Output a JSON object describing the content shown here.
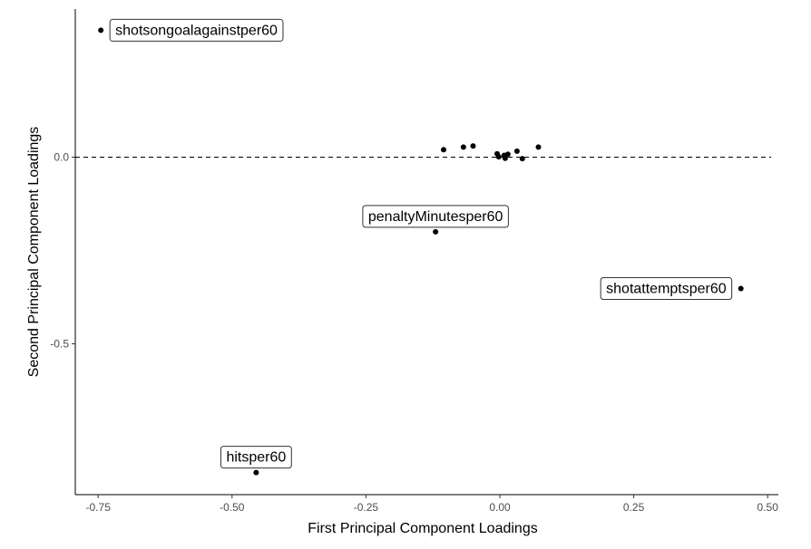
{
  "chart_data": {
    "type": "scatter",
    "title": "",
    "xlabel": "First Principal Component Loadings",
    "ylabel": "Second Principal Component Loadings",
    "xlim": [
      -0.8,
      0.5
    ],
    "ylim": [
      -0.9,
      0.34
    ],
    "x_ticks": [
      -0.75,
      -0.5,
      -0.25,
      0.0,
      0.25,
      0.5
    ],
    "x_tick_labels": [
      "-0.75",
      "-0.50",
      "-0.25",
      "0.00",
      "0.25",
      "0.50"
    ],
    "y_ticks": [
      0.0,
      -0.5
    ],
    "y_tick_labels": [
      "0.0",
      "-0.5"
    ],
    "reference_line": {
      "y": 0.0,
      "style": "dashed"
    },
    "grid": false,
    "points": [
      {
        "x": -0.745,
        "y": 0.34,
        "label": "shotsongoalagainstper60"
      },
      {
        "x": -0.455,
        "y": -0.845,
        "label": "hitsper60"
      },
      {
        "x": -0.12,
        "y": -0.2,
        "label": "penaltyMinutesper60"
      },
      {
        "x": 0.45,
        "y": -0.352,
        "label": "shotattemptsper60"
      },
      {
        "x": -0.105,
        "y": 0.02
      },
      {
        "x": -0.068,
        "y": 0.027
      },
      {
        "x": -0.05,
        "y": 0.03
      },
      {
        "x": -0.005,
        "y": 0.009
      },
      {
        "x": -0.002,
        "y": 0.001
      },
      {
        "x": 0.008,
        "y": 0.005
      },
      {
        "x": 0.01,
        "y": -0.003
      },
      {
        "x": 0.015,
        "y": 0.008
      },
      {
        "x": 0.032,
        "y": 0.016
      },
      {
        "x": 0.042,
        "y": -0.004
      },
      {
        "x": 0.072,
        "y": 0.027
      }
    ]
  }
}
